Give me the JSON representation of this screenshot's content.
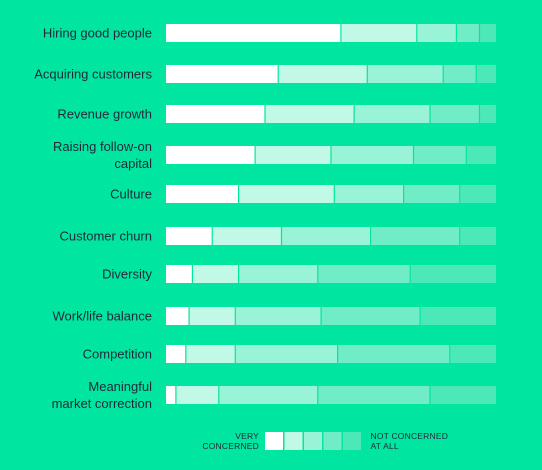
{
  "chart_data": {
    "type": "bar",
    "stacked": true,
    "orientation": "horizontal",
    "title": "",
    "xlabel": "",
    "ylabel": "",
    "xlim": [
      0,
      100
    ],
    "unit": "percent of respondents",
    "categories": [
      "Hiring good people",
      "Acquiring customers",
      "Revenue growth",
      "Raising follow-on capital",
      "Culture",
      "Customer churn",
      "Diversity",
      "Work/life balance",
      "Competition",
      "Meaningful market correction"
    ],
    "category_lines": [
      [
        "Hiring good people"
      ],
      [
        "Acquiring customers"
      ],
      [
        "Revenue growth"
      ],
      [
        "Raising follow-on",
        "capital"
      ],
      [
        "Culture"
      ],
      [
        "Customer churn"
      ],
      [
        "Diversity"
      ],
      [
        "Work/life balance"
      ],
      [
        "Competition"
      ],
      [
        "Meaningful",
        "market correction"
      ]
    ],
    "series": [
      {
        "values": [
          53,
          34,
          30,
          27,
          22,
          14,
          8,
          7,
          6,
          3
        ]
      },
      {
        "values": [
          23,
          27,
          27,
          23,
          29,
          21,
          14,
          14,
          15,
          13
        ]
      },
      {
        "values": [
          12,
          23,
          23,
          25,
          21,
          27,
          24,
          26,
          31,
          30
        ]
      },
      {
        "values": [
          7,
          10,
          15,
          16,
          17,
          27,
          28,
          30,
          34,
          34
        ]
      },
      {
        "values": [
          5,
          6,
          5,
          9,
          11,
          11,
          26,
          23,
          14,
          20
        ]
      }
    ],
    "colors": [
      "#ffffff",
      "#c2f8e6",
      "#99f3d6",
      "#70edc7",
      "#4de8b8"
    ],
    "legend": {
      "placement": "bottom",
      "left_label": [
        "VERY",
        "CONCERNED"
      ],
      "right_label": [
        "NOT CONCERNED",
        "AT ALL"
      ]
    }
  }
}
